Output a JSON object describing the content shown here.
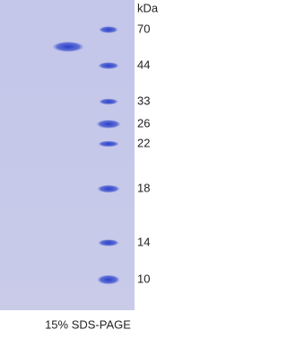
{
  "gel": {
    "unit_label": "kDa",
    "markers": [
      "70",
      "44",
      "33",
      "26",
      "22",
      "18",
      "14",
      "10"
    ],
    "caption": "15% SDS-PAGE"
  }
}
